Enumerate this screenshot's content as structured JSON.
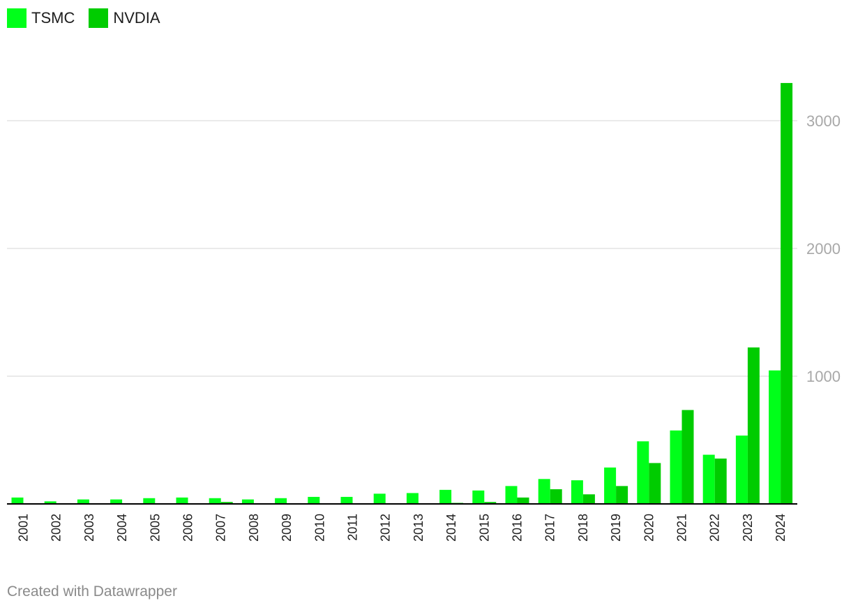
{
  "legend": {
    "tsmc_label": "TSMC",
    "nvdia_label": "NVDIA"
  },
  "footer": {
    "credit": "Created with Datawrapper"
  },
  "colors": {
    "tsmc": "#00ff1a",
    "nvdia": "#00cc00",
    "grid": "#e4e4e4",
    "axis": "#000000",
    "ytick": "#a8a8a8"
  },
  "chart_data": {
    "type": "bar",
    "title": "",
    "xlabel": "",
    "ylabel": "",
    "ylim": [
      0,
      3300
    ],
    "yticks": [
      1000,
      2000,
      3000
    ],
    "legend_position": "top-left",
    "categories": [
      "2001",
      "2002",
      "2003",
      "2004",
      "2005",
      "2006",
      "2007",
      "2008",
      "2009",
      "2010",
      "2011",
      "2012",
      "2013",
      "2014",
      "2015",
      "2016",
      "2017",
      "2018",
      "2019",
      "2020",
      "2021",
      "2022",
      "2023",
      "2024"
    ],
    "series": [
      {
        "name": "TSMC",
        "values": [
          50,
          20,
          35,
          35,
          45,
          50,
          45,
          35,
          45,
          55,
          55,
          80,
          85,
          110,
          105,
          140,
          195,
          185,
          285,
          490,
          575,
          385,
          535,
          1045
        ]
      },
      {
        "name": "NVDIA",
        "values": [
          0,
          0,
          0,
          0,
          0,
          5,
          15,
          0,
          0,
          0,
          0,
          0,
          0,
          8,
          15,
          50,
          115,
          75,
          140,
          320,
          735,
          355,
          1225,
          3295
        ]
      }
    ]
  }
}
